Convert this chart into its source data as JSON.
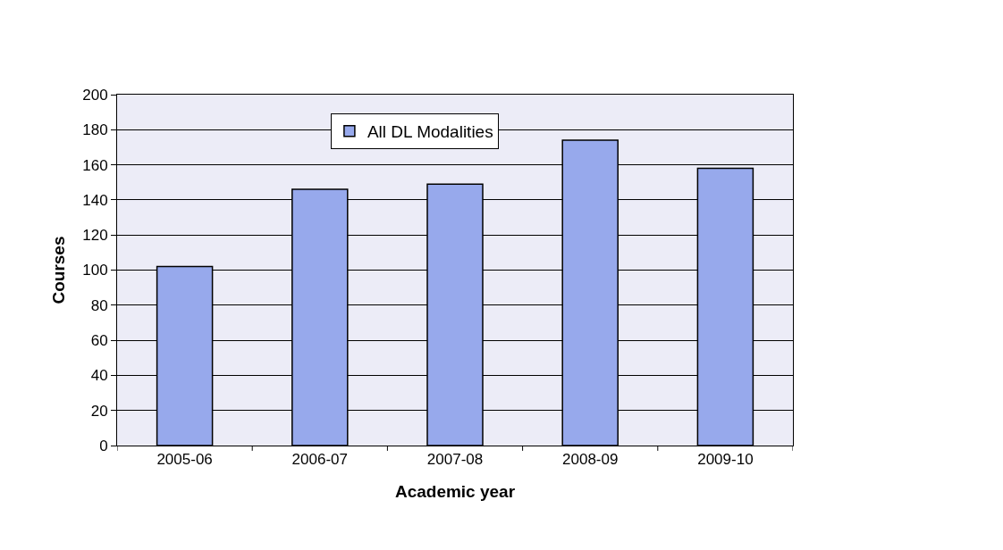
{
  "chart_data": {
    "type": "bar",
    "xlabel": "Academic year",
    "ylabel": "Courses",
    "categories": [
      "2005-06",
      "2006-07",
      "2007-08",
      "2008-09",
      "2009-10"
    ],
    "series": [
      {
        "name": "All DL Modalities",
        "color": "#97a9ec",
        "values": [
          102,
          146,
          149,
          174,
          158
        ]
      }
    ],
    "ylim": [
      0,
      200
    ],
    "yticks": [
      0,
      20,
      40,
      60,
      80,
      100,
      120,
      140,
      160,
      180,
      200
    ],
    "grid": "y",
    "legend": "top"
  }
}
